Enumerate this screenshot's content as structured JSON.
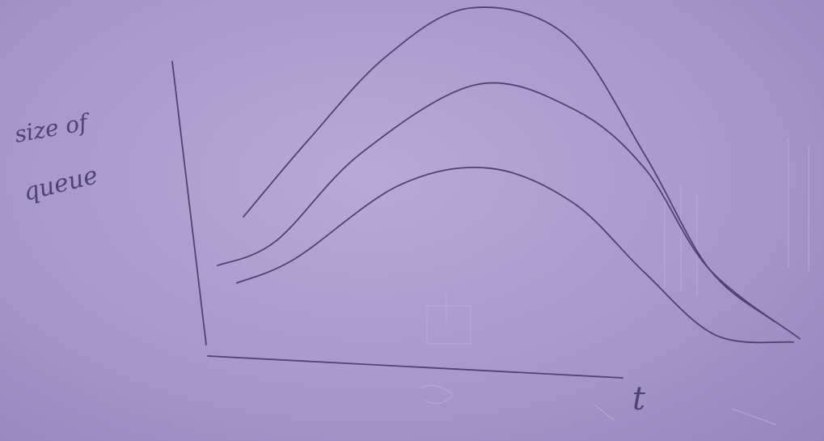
{
  "chart_data": {
    "type": "line",
    "title": "",
    "xlabel": "t",
    "ylabel_line1": "size of",
    "ylabel_line2": "queue",
    "grid": false,
    "legend": "none",
    "x_range": [
      0,
      1
    ],
    "y_range": [
      0,
      1
    ],
    "series": [
      {
        "points": [
          [
            0.12,
            0.4
          ],
          [
            0.22,
            0.62
          ],
          [
            0.34,
            0.86
          ],
          [
            0.47,
            1.0
          ],
          [
            0.62,
            0.92
          ],
          [
            0.74,
            0.58
          ],
          [
            0.84,
            0.25
          ],
          [
            0.94,
            0.1
          ]
        ]
      },
      {
        "points": [
          [
            0.08,
            0.26
          ],
          [
            0.17,
            0.33
          ],
          [
            0.3,
            0.58
          ],
          [
            0.48,
            0.78
          ],
          [
            0.63,
            0.71
          ],
          [
            0.74,
            0.54
          ],
          [
            0.84,
            0.25
          ],
          [
            0.98,
            0.05
          ]
        ]
      },
      {
        "points": [
          [
            0.11,
            0.21
          ],
          [
            0.2,
            0.28
          ],
          [
            0.36,
            0.49
          ],
          [
            0.5,
            0.54
          ],
          [
            0.63,
            0.44
          ],
          [
            0.74,
            0.24
          ],
          [
            0.85,
            0.06
          ],
          [
            0.97,
            0.04
          ]
        ]
      }
    ]
  },
  "colors": {
    "paper": "#a898cb",
    "pencil": "#4d4472"
  }
}
